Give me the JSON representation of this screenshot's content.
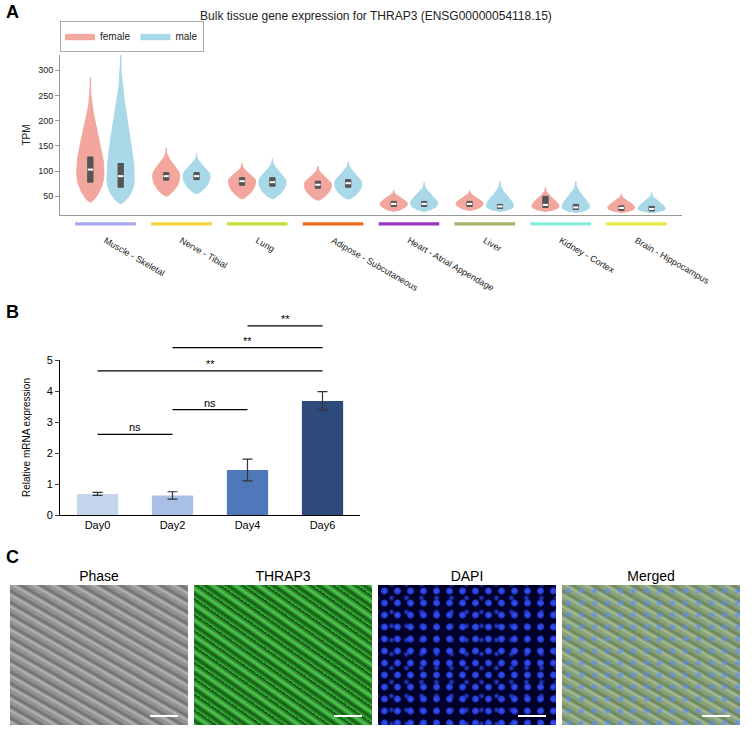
{
  "chart_data": [
    {
      "panel": "A",
      "type": "violin",
      "title": "Bulk tissue gene expression for THRAP3 (ENSG00000054118.15)",
      "y_label": "TPM",
      "categories": [
        "Muscle - Skeletal",
        "Nerve - Tibial",
        "Lung",
        "Adipose - Subcutaneous",
        "Heart - Atrial Appendage",
        "Liver",
        "Kidney - Cortex",
        "Brain - Hippocampus"
      ],
      "series": [
        {
          "name": "female",
          "color": "#f2a69d",
          "min": [
            38,
            50,
            45,
            42,
            20,
            22,
            20,
            18
          ],
          "q1": [
            78,
            82,
            72,
            66,
            30,
            30,
            28,
            22
          ],
          "median": [
            103,
            90,
            80,
            73,
            35,
            35,
            33,
            27
          ],
          "q3": [
            128,
            97,
            87,
            80,
            40,
            40,
            50,
            31
          ],
          "max": [
            285,
            145,
            115,
            110,
            62,
            62,
            68,
            55
          ],
          "peak": [
            95,
            90,
            80,
            73,
            35,
            35,
            30,
            27
          ]
        },
        {
          "name": "male",
          "color": "#a9d8e8",
          "min": [
            35,
            55,
            45,
            44,
            20,
            20,
            18,
            18
          ],
          "q1": [
            68,
            83,
            70,
            68,
            30,
            26,
            24,
            21
          ],
          "median": [
            90,
            90,
            78,
            76,
            35,
            30,
            28,
            25
          ],
          "q3": [
            115,
            97,
            87,
            83,
            40,
            34,
            34,
            30
          ],
          "max": [
            345,
            135,
            125,
            120,
            78,
            80,
            80,
            58
          ],
          "peak": [
            82,
            90,
            78,
            75,
            35,
            30,
            28,
            25
          ]
        }
      ],
      "ylim": [
        13,
        330
      ],
      "yticks": [
        50,
        100,
        150,
        200,
        250,
        300
      ],
      "legend": "top left",
      "grid": false
    },
    {
      "panel": "B",
      "type": "bar",
      "y_label": "Relative mRNA expression",
      "categories": [
        "Day0",
        "Day2",
        "Day4",
        "Day6"
      ],
      "values": [
        0.68,
        0.63,
        1.45,
        3.68
      ],
      "errors": [
        0.05,
        0.12,
        0.35,
        0.3
      ],
      "colors": [
        "#c5d5ee",
        "#a9c0e4",
        "#4f78b8",
        "#2e4a7a"
      ],
      "ylim": [
        0,
        5
      ],
      "yticks": [
        0,
        1,
        2,
        3,
        4,
        5
      ],
      "grid": false,
      "annotations": [
        {
          "from": "Day0",
          "to": "Day2",
          "y": 2.6,
          "text": "ns"
        },
        {
          "from": "Day2",
          "to": "Day4",
          "y": 3.4,
          "text": "ns"
        },
        {
          "from": "Day0",
          "to": "Day6",
          "y": 4.65,
          "text": "**"
        },
        {
          "from": "Day2",
          "to": "Day6",
          "y": 5.4,
          "text": "**"
        },
        {
          "from": "Day4",
          "to": "Day6",
          "y": 6.1,
          "text": "**"
        }
      ]
    }
  ],
  "images": {
    "panel": "C",
    "titles": [
      "Phase",
      "THRAP3",
      "DAPI",
      "Merged"
    ]
  }
}
